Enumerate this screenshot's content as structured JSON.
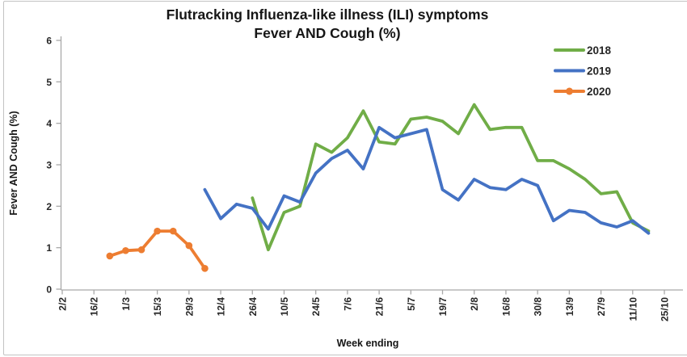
{
  "figure": {
    "title_line1": "Flutracking Influenza-like illness (ILI) symptoms",
    "title_line2": "Fever AND Cough (%)",
    "x_axis_title": "Week ending",
    "y_axis_title": "Fever AND Cough (%)"
  },
  "colors": {
    "axis": "#a9a9a9",
    "text": "#262626",
    "background": "#ffffff",
    "series_2018": "#70AD47",
    "series_2019": "#4472C4",
    "series_2020": "#ED7D31"
  },
  "chart_data": {
    "type": "line",
    "title": "Flutracking Influenza-like illness (ILI) symptoms — Fever AND Cough (%)",
    "xlabel": "Week ending",
    "ylabel": "Fever AND Cough (%)",
    "ylim": [
      0,
      6
    ],
    "y_ticks": [
      "0",
      "1",
      "2",
      "3",
      "4",
      "5",
      "6"
    ],
    "grid": false,
    "legend_position": "top-right",
    "x_weeks": [
      "2/2",
      "9/2",
      "16/2",
      "23/2",
      "1/3",
      "8/3",
      "15/3",
      "22/3",
      "29/3",
      "5/4",
      "12/4",
      "19/4",
      "26/4",
      "3/5",
      "10/5",
      "17/5",
      "24/5",
      "31/5",
      "7/6",
      "14/6",
      "21/6",
      "28/6",
      "5/7",
      "12/7",
      "19/7",
      "26/7",
      "2/8",
      "9/8",
      "16/8",
      "23/8",
      "30/8",
      "6/9",
      "13/9",
      "20/9",
      "27/9",
      "4/10",
      "11/10",
      "18/10",
      "25/10"
    ],
    "x_tick_labels": [
      "2/2",
      "16/2",
      "1/3",
      "15/3",
      "29/3",
      "12/4",
      "26/4",
      "10/5",
      "24/5",
      "7/6",
      "21/6",
      "5/7",
      "19/7",
      "2/8",
      "16/8",
      "30/8",
      "13/9",
      "27/9",
      "11/10",
      "25/10"
    ],
    "series": [
      {
        "name": "2018",
        "color": "#70AD47",
        "markers": false,
        "start_week": "26/4",
        "start_index": 12,
        "values": [
          2.2,
          0.95,
          1.85,
          2.0,
          3.5,
          3.3,
          3.65,
          4.3,
          3.55,
          3.5,
          4.1,
          4.15,
          4.05,
          3.75,
          4.45,
          3.85,
          3.9,
          3.9,
          3.1,
          3.1,
          2.9,
          2.65,
          2.3,
          2.35,
          1.6,
          1.4
        ]
      },
      {
        "name": "2019",
        "color": "#4472C4",
        "markers": false,
        "start_week": "5/4",
        "start_index": 9,
        "values": [
          2.4,
          1.7,
          2.05,
          1.95,
          1.45,
          2.25,
          2.1,
          2.8,
          3.15,
          3.35,
          2.9,
          3.9,
          3.65,
          3.75,
          3.85,
          2.4,
          2.15,
          2.65,
          2.45,
          2.4,
          2.65,
          2.5,
          1.65,
          1.9,
          1.85,
          1.6,
          1.5,
          1.65,
          1.35
        ]
      },
      {
        "name": "2020",
        "color": "#ED7D31",
        "markers": true,
        "start_week": "23/2",
        "start_index": 3,
        "values": [
          0.8,
          0.93,
          0.95,
          1.4,
          1.4,
          1.05,
          0.5
        ]
      }
    ]
  }
}
